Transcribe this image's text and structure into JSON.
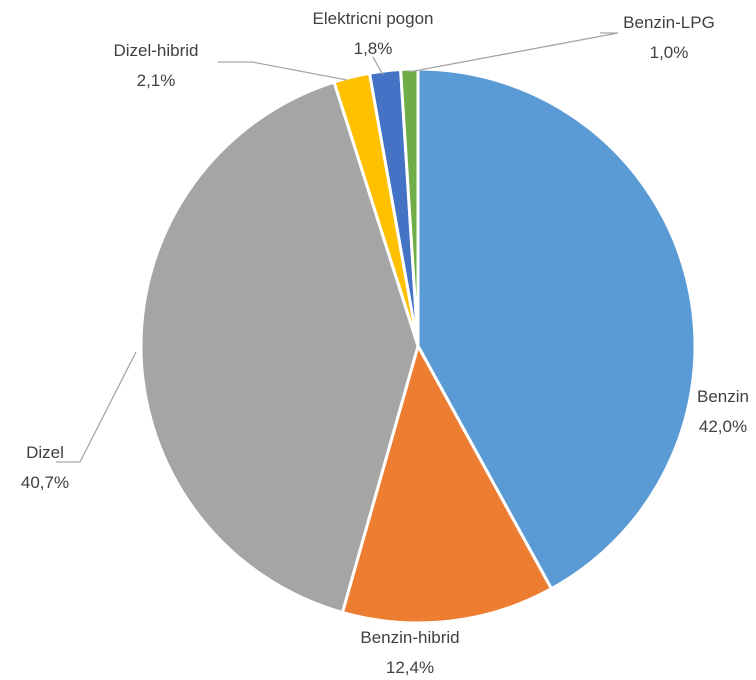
{
  "chart_data": {
    "type": "pie",
    "title": "",
    "start_angle_deg": 0,
    "direction": "clockwise",
    "slice_border_color": "#ffffff",
    "label_color": "#404040",
    "leader_line_color": "#a6a6a6",
    "slices": [
      {
        "name": "Benzin",
        "value": 42.0,
        "value_label": "42,0%",
        "color": "#5b9bd5"
      },
      {
        "name": "Benzin-hibrid",
        "value": 12.4,
        "value_label": "12,4%",
        "color": "#ed7d31"
      },
      {
        "name": "Dizel",
        "value": 40.7,
        "value_label": "40,7%",
        "color": "#a5a5a5"
      },
      {
        "name": "Dizel-hibrid",
        "value": 2.1,
        "value_label": "2,1%",
        "color": "#ffc000"
      },
      {
        "name": "Elektricni pogon",
        "value": 1.8,
        "value_label": "1,8%",
        "color": "#4472c4"
      },
      {
        "name": "Benzin-LPG",
        "value": 1.0,
        "value_label": "1,0%",
        "color": "#70ad47"
      }
    ]
  }
}
